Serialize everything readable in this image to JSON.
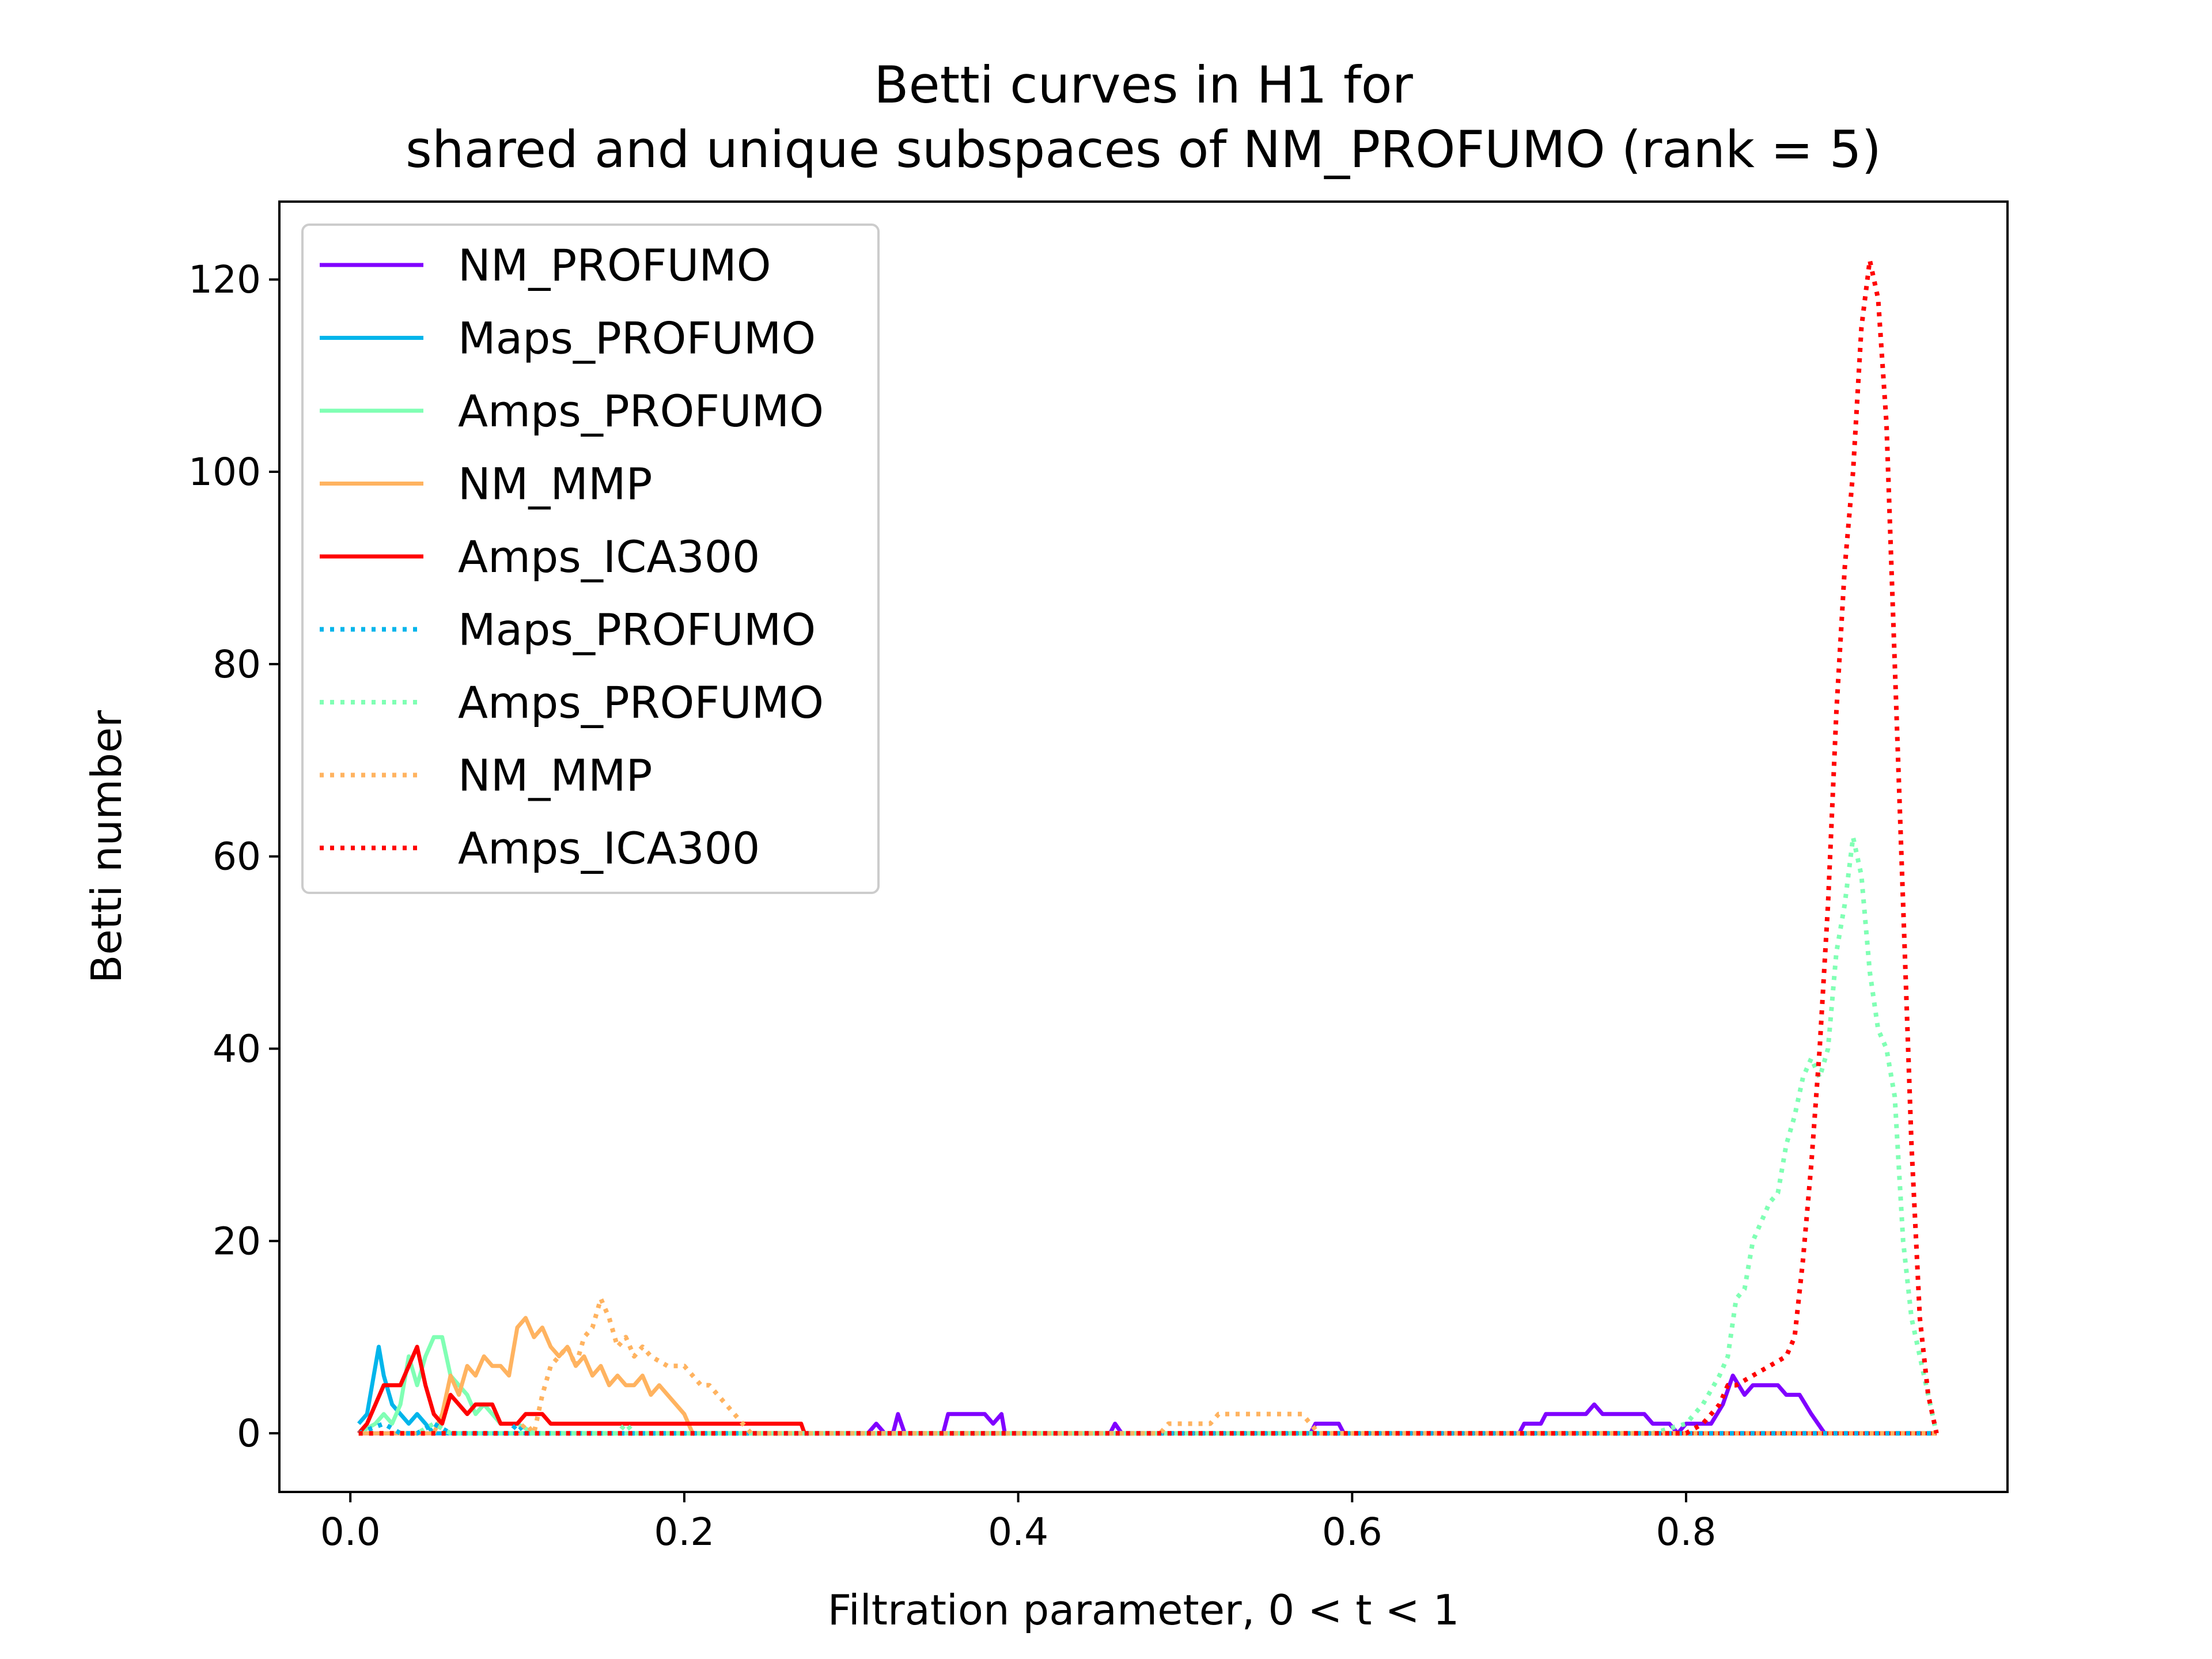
{
  "chart_data": {
    "type": "line",
    "title": [
      "Betti curves in H1 for",
      "shared and unique subspaces of NM_PROFUMO (rank = 5)"
    ],
    "xlabel": "Filtration parameter, 0 < t < 1",
    "ylabel": "Betti number",
    "xlim": [
      -0.0425,
      0.9925
    ],
    "ylim": [
      -6.1,
      128.1
    ],
    "xticks": [
      0.0,
      0.2,
      0.4,
      0.6,
      0.8
    ],
    "xtick_labels": [
      "0.0",
      "0.2",
      "0.4",
      "0.6",
      "0.8"
    ],
    "yticks": [
      0,
      20,
      40,
      60,
      80,
      100,
      120
    ],
    "ytick_labels": [
      "0",
      "20",
      "40",
      "60",
      "80",
      "100",
      "120"
    ],
    "grid": false,
    "legend_position": "upper-left",
    "series": [
      {
        "name": "NM_PROFUMO",
        "color": "#8000ff",
        "style": "solid",
        "points": [
          [
            0.005,
            0
          ],
          [
            0.31,
            0
          ],
          [
            0.315,
            1
          ],
          [
            0.32,
            0
          ],
          [
            0.325,
            0
          ],
          [
            0.328,
            2
          ],
          [
            0.332,
            0
          ],
          [
            0.355,
            0
          ],
          [
            0.358,
            2
          ],
          [
            0.38,
            2
          ],
          [
            0.385,
            1
          ],
          [
            0.39,
            2
          ],
          [
            0.392,
            0
          ],
          [
            0.455,
            0
          ],
          [
            0.458,
            1
          ],
          [
            0.462,
            0
          ],
          [
            0.575,
            0
          ],
          [
            0.578,
            1
          ],
          [
            0.592,
            1
          ],
          [
            0.595,
            0
          ],
          [
            0.7,
            0
          ],
          [
            0.703,
            1
          ],
          [
            0.713,
            1
          ],
          [
            0.716,
            2
          ],
          [
            0.74,
            2
          ],
          [
            0.745,
            3
          ],
          [
            0.75,
            2
          ],
          [
            0.775,
            2
          ],
          [
            0.78,
            1
          ],
          [
            0.79,
            1
          ],
          [
            0.795,
            0
          ],
          [
            0.8,
            1
          ],
          [
            0.815,
            1
          ],
          [
            0.822,
            3
          ],
          [
            0.828,
            6
          ],
          [
            0.835,
            4
          ],
          [
            0.84,
            5
          ],
          [
            0.855,
            5
          ],
          [
            0.86,
            4
          ],
          [
            0.868,
            4
          ],
          [
            0.875,
            2
          ],
          [
            0.883,
            0
          ],
          [
            0.95,
            0
          ]
        ]
      },
      {
        "name": "Maps_PROFUMO",
        "color": "#00b5eb",
        "style": "solid",
        "points": [
          [
            0.005,
            1
          ],
          [
            0.01,
            2
          ],
          [
            0.013,
            5
          ],
          [
            0.017,
            9
          ],
          [
            0.02,
            6
          ],
          [
            0.025,
            3
          ],
          [
            0.03,
            2
          ],
          [
            0.035,
            1
          ],
          [
            0.04,
            2
          ],
          [
            0.045,
            1
          ],
          [
            0.05,
            0
          ],
          [
            0.95,
            0
          ]
        ]
      },
      {
        "name": "Amps_PROFUMO",
        "color": "#80ffb4",
        "style": "solid",
        "points": [
          [
            0.005,
            0
          ],
          [
            0.015,
            1
          ],
          [
            0.02,
            2
          ],
          [
            0.025,
            1
          ],
          [
            0.03,
            3
          ],
          [
            0.035,
            8
          ],
          [
            0.04,
            5
          ],
          [
            0.045,
            8
          ],
          [
            0.05,
            10
          ],
          [
            0.055,
            10
          ],
          [
            0.06,
            6
          ],
          [
            0.065,
            5
          ],
          [
            0.07,
            4
          ],
          [
            0.075,
            2
          ],
          [
            0.08,
            3
          ],
          [
            0.09,
            1
          ],
          [
            0.1,
            1
          ],
          [
            0.11,
            0
          ],
          [
            0.95,
            0
          ]
        ]
      },
      {
        "name": "NM_MMP",
        "color": "#ffb360",
        "style": "solid",
        "points": [
          [
            0.005,
            0
          ],
          [
            0.05,
            0
          ],
          [
            0.055,
            2
          ],
          [
            0.06,
            6
          ],
          [
            0.065,
            4
          ],
          [
            0.07,
            7
          ],
          [
            0.075,
            6
          ],
          [
            0.08,
            8
          ],
          [
            0.085,
            7
          ],
          [
            0.09,
            7
          ],
          [
            0.095,
            6
          ],
          [
            0.1,
            11
          ],
          [
            0.105,
            12
          ],
          [
            0.11,
            10
          ],
          [
            0.115,
            11
          ],
          [
            0.12,
            9
          ],
          [
            0.125,
            8
          ],
          [
            0.13,
            9
          ],
          [
            0.135,
            7
          ],
          [
            0.14,
            8
          ],
          [
            0.145,
            6
          ],
          [
            0.15,
            7
          ],
          [
            0.155,
            5
          ],
          [
            0.16,
            6
          ],
          [
            0.165,
            5
          ],
          [
            0.17,
            5
          ],
          [
            0.175,
            6
          ],
          [
            0.18,
            4
          ],
          [
            0.185,
            5
          ],
          [
            0.19,
            4
          ],
          [
            0.195,
            3
          ],
          [
            0.2,
            2
          ],
          [
            0.205,
            0
          ],
          [
            0.95,
            0
          ]
        ]
      },
      {
        "name": "Amps_ICA300",
        "color": "#ff0000",
        "style": "solid",
        "points": [
          [
            0.005,
            0
          ],
          [
            0.01,
            1
          ],
          [
            0.015,
            3
          ],
          [
            0.02,
            5
          ],
          [
            0.03,
            5
          ],
          [
            0.035,
            7
          ],
          [
            0.04,
            9
          ],
          [
            0.045,
            5
          ],
          [
            0.05,
            2
          ],
          [
            0.055,
            1
          ],
          [
            0.06,
            4
          ],
          [
            0.065,
            3
          ],
          [
            0.07,
            2
          ],
          [
            0.075,
            3
          ],
          [
            0.085,
            3
          ],
          [
            0.09,
            1
          ],
          [
            0.1,
            1
          ],
          [
            0.105,
            2
          ],
          [
            0.115,
            2
          ],
          [
            0.12,
            1
          ],
          [
            0.27,
            1
          ],
          [
            0.272,
            0
          ],
          [
            0.95,
            0
          ]
        ]
      },
      {
        "name": "Maps_PROFUMO",
        "color": "#00b5eb",
        "style": "dotted",
        "points": [
          [
            0.005,
            0
          ],
          [
            0.02,
            1
          ],
          [
            0.03,
            0
          ],
          [
            0.04,
            0
          ],
          [
            0.05,
            1
          ],
          [
            0.06,
            0
          ],
          [
            0.095,
            0
          ],
          [
            0.1,
            1
          ],
          [
            0.105,
            0
          ],
          [
            0.95,
            0
          ]
        ]
      },
      {
        "name": "Amps_PROFUMO",
        "color": "#80ffb4",
        "style": "dotted",
        "points": [
          [
            0.005,
            0
          ],
          [
            0.04,
            0
          ],
          [
            0.05,
            1
          ],
          [
            0.06,
            0
          ],
          [
            0.16,
            0
          ],
          [
            0.165,
            1
          ],
          [
            0.17,
            0
          ],
          [
            0.78,
            0
          ],
          [
            0.8,
            1
          ],
          [
            0.81,
            3
          ],
          [
            0.82,
            6
          ],
          [
            0.825,
            8
          ],
          [
            0.83,
            14
          ],
          [
            0.835,
            15
          ],
          [
            0.84,
            20
          ],
          [
            0.845,
            22
          ],
          [
            0.85,
            24
          ],
          [
            0.855,
            25
          ],
          [
            0.86,
            30
          ],
          [
            0.865,
            33
          ],
          [
            0.87,
            37
          ],
          [
            0.875,
            39
          ],
          [
            0.88,
            37
          ],
          [
            0.885,
            40
          ],
          [
            0.89,
            50
          ],
          [
            0.895,
            55
          ],
          [
            0.9,
            62
          ],
          [
            0.905,
            58
          ],
          [
            0.91,
            48
          ],
          [
            0.915,
            42
          ],
          [
            0.92,
            40
          ],
          [
            0.925,
            35
          ],
          [
            0.93,
            20
          ],
          [
            0.935,
            12
          ],
          [
            0.94,
            8
          ],
          [
            0.945,
            4
          ],
          [
            0.95,
            0
          ]
        ]
      },
      {
        "name": "NM_MMP",
        "color": "#ffb360",
        "style": "dotted",
        "points": [
          [
            0.005,
            0
          ],
          [
            0.1,
            0
          ],
          [
            0.105,
            1
          ],
          [
            0.11,
            0
          ],
          [
            0.115,
            4
          ],
          [
            0.12,
            7
          ],
          [
            0.125,
            8
          ],
          [
            0.13,
            9
          ],
          [
            0.135,
            7
          ],
          [
            0.14,
            10
          ],
          [
            0.145,
            11
          ],
          [
            0.15,
            14
          ],
          [
            0.155,
            12
          ],
          [
            0.16,
            9
          ],
          [
            0.165,
            10
          ],
          [
            0.17,
            8
          ],
          [
            0.175,
            9
          ],
          [
            0.18,
            8
          ],
          [
            0.19,
            7
          ],
          [
            0.2,
            7
          ],
          [
            0.205,
            6
          ],
          [
            0.21,
            5
          ],
          [
            0.215,
            5
          ],
          [
            0.22,
            4
          ],
          [
            0.225,
            3
          ],
          [
            0.23,
            2
          ],
          [
            0.235,
            1
          ],
          [
            0.24,
            0
          ],
          [
            0.485,
            0
          ],
          [
            0.49,
            1
          ],
          [
            0.515,
            1
          ],
          [
            0.52,
            2
          ],
          [
            0.57,
            2
          ],
          [
            0.575,
            1
          ],
          [
            0.58,
            0
          ],
          [
            0.95,
            0
          ]
        ]
      },
      {
        "name": "Amps_ICA300",
        "color": "#ff0000",
        "style": "dotted",
        "points": [
          [
            0.005,
            0
          ],
          [
            0.8,
            0
          ],
          [
            0.81,
            1
          ],
          [
            0.82,
            3
          ],
          [
            0.825,
            5
          ],
          [
            0.83,
            5
          ],
          [
            0.84,
            6
          ],
          [
            0.85,
            7
          ],
          [
            0.86,
            8
          ],
          [
            0.865,
            10
          ],
          [
            0.87,
            18
          ],
          [
            0.875,
            28
          ],
          [
            0.88,
            40
          ],
          [
            0.885,
            55
          ],
          [
            0.89,
            75
          ],
          [
            0.895,
            90
          ],
          [
            0.9,
            100
          ],
          [
            0.905,
            115
          ],
          [
            0.91,
            122
          ],
          [
            0.915,
            118
          ],
          [
            0.92,
            105
          ],
          [
            0.925,
            80
          ],
          [
            0.93,
            55
          ],
          [
            0.935,
            30
          ],
          [
            0.94,
            12
          ],
          [
            0.945,
            4
          ],
          [
            0.95,
            0
          ]
        ]
      }
    ]
  }
}
